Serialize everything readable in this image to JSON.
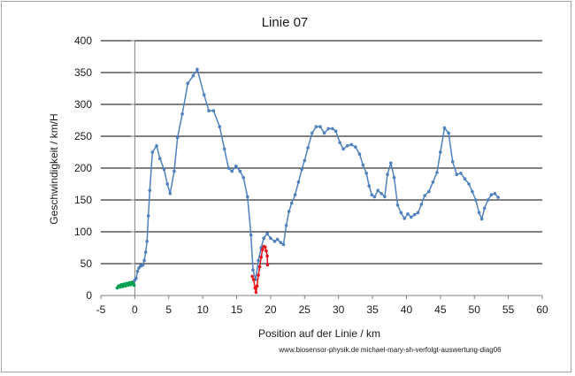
{
  "chart_data": {
    "type": "line",
    "title": "Linie 07",
    "xlabel": "Position auf der Linie / km",
    "ylabel": "Geschwindigkeit / km/H",
    "xlim": [
      -5,
      60
    ],
    "ylim": [
      0,
      400
    ],
    "x_ticks": [
      -5,
      0,
      5,
      10,
      15,
      20,
      25,
      30,
      35,
      40,
      45,
      50,
      55,
      60
    ],
    "y_ticks": [
      0,
      50,
      100,
      150,
      200,
      250,
      300,
      350,
      400
    ],
    "grid": "horizontal",
    "legend": "none",
    "annotation": "www.biosensor-physik.de   michael-mary-sh-verfolgt-auswertung-diag06",
    "series": [
      {
        "color": "#4f81bd",
        "points": [
          [
            -0.3,
            20
          ],
          [
            0,
            24
          ],
          [
            0.2,
            27
          ],
          [
            0.4,
            38
          ],
          [
            0.6,
            43
          ],
          [
            0.8,
            46
          ],
          [
            1.0,
            47
          ],
          [
            1.2,
            48
          ],
          [
            1.4,
            55
          ],
          [
            1.6,
            68
          ],
          [
            1.8,
            85
          ],
          [
            2.0,
            125
          ],
          [
            2.2,
            165
          ],
          [
            2.6,
            225
          ],
          [
            3.2,
            235
          ],
          [
            3.7,
            215
          ],
          [
            4.3,
            198
          ],
          [
            4.8,
            175
          ],
          [
            5.2,
            160
          ],
          [
            5.8,
            195
          ],
          [
            6.3,
            248
          ],
          [
            7.0,
            285
          ],
          [
            7.8,
            333
          ],
          [
            8.6,
            345
          ],
          [
            9.2,
            355
          ],
          [
            10.2,
            315
          ],
          [
            10.9,
            290
          ],
          [
            11.6,
            290
          ],
          [
            12.5,
            265
          ],
          [
            13.2,
            230
          ],
          [
            13.8,
            200
          ],
          [
            14.3,
            195
          ],
          [
            14.9,
            203
          ],
          [
            15.5,
            195
          ],
          [
            16.0,
            185
          ],
          [
            16.6,
            155
          ],
          [
            17.1,
            95
          ],
          [
            17.4,
            40
          ],
          [
            17.8,
            25
          ],
          [
            18.2,
            55
          ],
          [
            18.6,
            75
          ],
          [
            19.0,
            90
          ],
          [
            19.5,
            97
          ],
          [
            20.0,
            90
          ],
          [
            20.6,
            85
          ],
          [
            21.0,
            88
          ],
          [
            21.5,
            83
          ],
          [
            21.9,
            80
          ],
          [
            22.3,
            110
          ],
          [
            22.7,
            132
          ],
          [
            23.1,
            145
          ],
          [
            23.6,
            158
          ],
          [
            24.1,
            178
          ],
          [
            24.6,
            198
          ],
          [
            25.0,
            212
          ],
          [
            25.5,
            232
          ],
          [
            26.1,
            255
          ],
          [
            26.7,
            265
          ],
          [
            27.3,
            265
          ],
          [
            27.9,
            255
          ],
          [
            28.5,
            262
          ],
          [
            29.1,
            262
          ],
          [
            29.6,
            258
          ],
          [
            30.2,
            240
          ],
          [
            30.7,
            230
          ],
          [
            31.3,
            235
          ],
          [
            31.9,
            237
          ],
          [
            32.5,
            233
          ],
          [
            33.1,
            222
          ],
          [
            33.6,
            205
          ],
          [
            34.1,
            192
          ],
          [
            34.5,
            172
          ],
          [
            34.9,
            158
          ],
          [
            35.3,
            155
          ],
          [
            35.8,
            165
          ],
          [
            36.3,
            160
          ],
          [
            36.8,
            155
          ],
          [
            37.2,
            190
          ],
          [
            37.7,
            208
          ],
          [
            38.2,
            185
          ],
          [
            38.7,
            142
          ],
          [
            39.2,
            130
          ],
          [
            39.7,
            121
          ],
          [
            40.2,
            128
          ],
          [
            40.7,
            123
          ],
          [
            41.2,
            127
          ],
          [
            41.7,
            130
          ],
          [
            42.2,
            143
          ],
          [
            42.7,
            157
          ],
          [
            43.3,
            163
          ],
          [
            43.9,
            178
          ],
          [
            44.5,
            193
          ],
          [
            45.0,
            225
          ],
          [
            45.6,
            263
          ],
          [
            46.2,
            255
          ],
          [
            46.8,
            210
          ],
          [
            47.4,
            190
          ],
          [
            48.0,
            192
          ],
          [
            48.6,
            183
          ],
          [
            49.2,
            175
          ],
          [
            49.7,
            163
          ],
          [
            50.2,
            150
          ],
          [
            50.7,
            130
          ],
          [
            51.1,
            120
          ],
          [
            51.5,
            137
          ],
          [
            52.0,
            150
          ],
          [
            52.5,
            158
          ],
          [
            53.0,
            160
          ],
          [
            53.5,
            154
          ]
        ]
      },
      {
        "color": "#00a050",
        "points": [
          [
            -2.6,
            12
          ],
          [
            -2.4,
            15
          ],
          [
            -2.2,
            13
          ],
          [
            -2.0,
            17
          ],
          [
            -1.8,
            14
          ],
          [
            -1.6,
            18
          ],
          [
            -1.4,
            15
          ],
          [
            -1.2,
            19
          ],
          [
            -1.0,
            16
          ],
          [
            -0.8,
            20
          ],
          [
            -0.6,
            17
          ],
          [
            -0.4,
            21
          ],
          [
            -0.2,
            18
          ],
          [
            -0.1,
            16
          ]
        ]
      },
      {
        "color": "#e8141c",
        "points": [
          [
            17.3,
            30
          ],
          [
            17.5,
            25
          ],
          [
            17.7,
            12
          ],
          [
            17.85,
            5
          ],
          [
            18.0,
            15
          ],
          [
            18.2,
            32
          ],
          [
            18.4,
            45
          ],
          [
            18.6,
            60
          ],
          [
            18.8,
            72
          ],
          [
            19.0,
            77
          ],
          [
            19.2,
            76
          ],
          [
            19.35,
            70
          ],
          [
            19.5,
            62
          ],
          [
            19.55,
            48
          ]
        ]
      }
    ]
  }
}
